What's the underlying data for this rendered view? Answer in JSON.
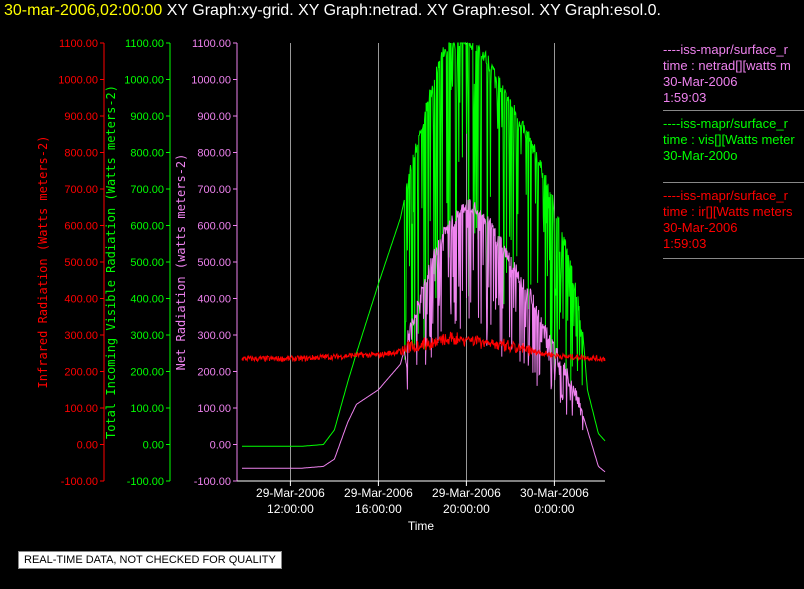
{
  "title": {
    "timestamp": "30-mar-2006,02:00:00",
    "graphs": "XY Graph:xy-grid.  XY Graph:netrad.  XY Graph:esol.  XY Graph:esol.0."
  },
  "colors": {
    "infrared": "#ff0000",
    "visible": "#00ff00",
    "net": "#ee82ee",
    "grid": "#ffffff",
    "background": "#000000"
  },
  "legend": [
    {
      "line1": "----iss-mapr/surface_r",
      "line2": "time : netrad[][watts m",
      "line3": "30-Mar-2006",
      "line4": "1:59:03",
      "color": "#ee82ee"
    },
    {
      "line1": "----iss-mapr/surface_r",
      "line2": "time : vis[][Watts meter",
      "line3": "30-Mar-200o",
      "line4": "",
      "color": "#00ff00"
    },
    {
      "line1": "----iss-mapr/surface_r",
      "line2": "time : ir[][Watts meters",
      "line3": "30-Mar-2006",
      "line4": "1:59:03",
      "color": "#ff0000"
    }
  ],
  "quality_note": "REAL-TIME DATA, NOT CHECKED FOR QUALITY",
  "chart_data": {
    "type": "line",
    "xlabel": "Time",
    "x_ticks": [
      {
        "date": "29-Mar-2006",
        "time": "12:00:00",
        "hours": 0
      },
      {
        "date": "29-Mar-2006",
        "time": "16:00:00",
        "hours": 4
      },
      {
        "date": "29-Mar-2006",
        "time": "20:00:00",
        "hours": 8
      },
      {
        "date": "30-Mar-2006",
        "time": "0:00:00",
        "hours": 12
      }
    ],
    "xlim_hours": [
      -2.2,
      14.3
    ],
    "y_axes": [
      {
        "label": "Infrared Radiation (Watts meters-2)",
        "ylim": [
          -100,
          1100
        ],
        "color": "#ff0000",
        "ticks": [
          "-100.00",
          "0.00",
          "100.00",
          "200.00",
          "300.00",
          "400.00",
          "500.00",
          "600.00",
          "700.00",
          "800.00",
          "900.00",
          "1000.00",
          "1100.00"
        ]
      },
      {
        "label": "Total Incoming Visible Radiation (Watts meters-2)",
        "ylim": [
          -100,
          1100
        ],
        "color": "#00ff00",
        "ticks": [
          "-100.00",
          "0.00",
          "100.00",
          "200.00",
          "300.00",
          "400.00",
          "500.00",
          "600.00",
          "700.00",
          "800.00",
          "900.00",
          "1000.00",
          "1100.00"
        ]
      },
      {
        "label": "Net Radiation (watts meters-2)",
        "ylim": [
          -100,
          1100
        ],
        "color": "#ee82ee",
        "ticks": [
          "-100.00",
          "0.00",
          "100.00",
          "200.00",
          "300.00",
          "400.00",
          "500.00",
          "600.00",
          "700.00",
          "800.00",
          "900.00",
          "1000.00",
          "1100.00"
        ]
      }
    ],
    "series": [
      {
        "name": "vis",
        "color": "#00ff00",
        "x": [
          -2.2,
          -1,
          0.5,
          1.5,
          2.0,
          2.6,
          3.0,
          4.0,
          5.0,
          5.5,
          6.0,
          6.3,
          6.6,
          7.0,
          7.5,
          8.0,
          8.5,
          9.0,
          9.5,
          10.0,
          10.5,
          11.0,
          11.5,
          12.0,
          12.5,
          13.0,
          13.3,
          13.5,
          14.0,
          14.3
        ],
        "y": [
          -5,
          -5,
          -5,
          0,
          40,
          170,
          250,
          440,
          620,
          760,
          880,
          950,
          1010,
          1080,
          1100,
          1100,
          1090,
          1050,
          990,
          930,
          880,
          820,
          740,
          650,
          540,
          420,
          300,
          150,
          30,
          10
        ]
      },
      {
        "name": "netrad",
        "color": "#ee82ee",
        "x": [
          -2.2,
          -1,
          0.5,
          1.5,
          2.0,
          2.6,
          3.0,
          4.0,
          5.0,
          5.5,
          6.0,
          6.3,
          6.6,
          7.0,
          7.5,
          8.0,
          8.5,
          9.0,
          9.5,
          10.0,
          10.5,
          11.0,
          11.5,
          12.0,
          12.5,
          13.0,
          13.3,
          13.5,
          14.0,
          14.3
        ],
        "y": [
          -65,
          -65,
          -65,
          -60,
          -40,
          60,
          110,
          150,
          220,
          330,
          420,
          480,
          530,
          580,
          620,
          660,
          640,
          610,
          560,
          500,
          450,
          400,
          330,
          260,
          200,
          130,
          80,
          40,
          -60,
          -75
        ]
      },
      {
        "name": "ir",
        "color": "#ff0000",
        "x": [
          -2.2,
          -1,
          0.5,
          1.5,
          2.0,
          3.0,
          4.0,
          5.0,
          5.5,
          6.0,
          6.5,
          7.0,
          7.5,
          8.0,
          8.5,
          9.0,
          9.5,
          10.0,
          10.5,
          11.0,
          11.5,
          12.0,
          12.5,
          13.0,
          13.5,
          14.0,
          14.3
        ],
        "y": [
          235,
          235,
          235,
          240,
          240,
          245,
          245,
          255,
          270,
          275,
          280,
          285,
          290,
          290,
          285,
          280,
          270,
          265,
          260,
          255,
          250,
          245,
          240,
          240,
          238,
          235,
          235
        ]
      }
    ]
  }
}
